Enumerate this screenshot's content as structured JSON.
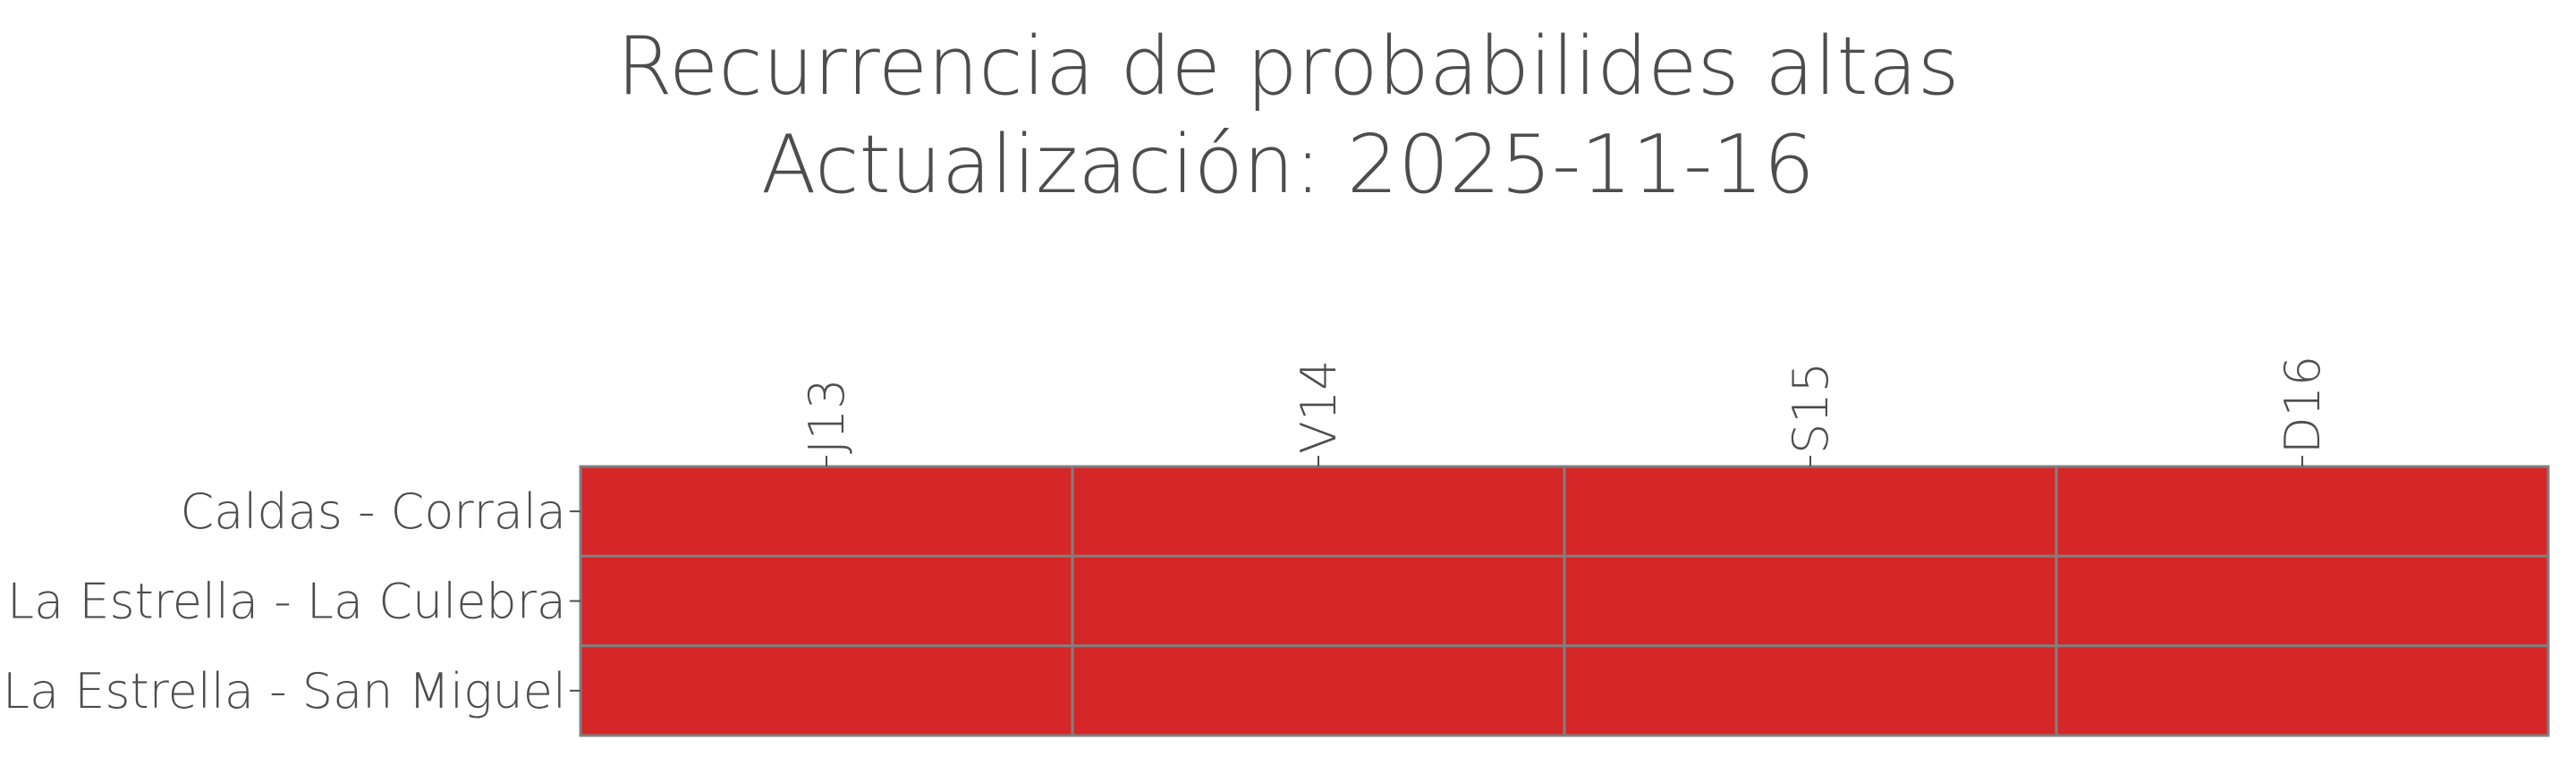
{
  "chart_data": {
    "type": "heatmap",
    "title": "Recurrencia de probabilides altas",
    "subtitle": "Actualización: 2025-11-16",
    "x_categories": [
      "J13",
      "V14",
      "S15",
      "D16"
    ],
    "y_categories": [
      "Caldas - Corrala",
      "La Estrella - La Culebra",
      "La Estrella - San Miguel"
    ],
    "values": [
      [
        1,
        1,
        1,
        1
      ],
      [
        1,
        1,
        1,
        1
      ],
      [
        1,
        1,
        1,
        1
      ]
    ],
    "color": "#d62728"
  }
}
